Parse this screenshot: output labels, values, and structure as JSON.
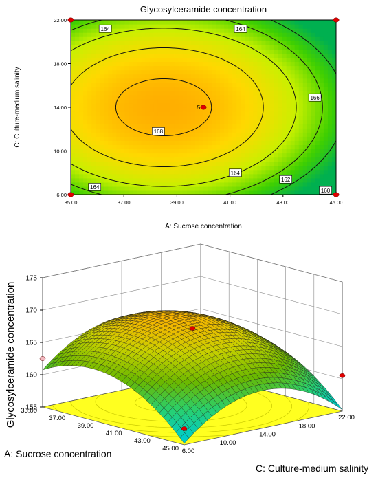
{
  "chart_data": [
    {
      "type": "contour",
      "title": "Glycosylceramide concentration",
      "xlabel": "A: Sucrose concentration",
      "ylabel": "C: Culture-medium salinity",
      "xlim": [
        35,
        45
      ],
      "ylim": [
        6,
        22
      ],
      "x_ticks": [
        "35.00",
        "37.00",
        "39.00",
        "41.00",
        "43.00",
        "45.00"
      ],
      "y_ticks": [
        "6.00",
        "10.00",
        "14.00",
        "18.00",
        "22.00"
      ],
      "contour_levels": [
        160,
        162,
        164,
        166,
        168
      ],
      "contour_labels": [
        {
          "text": "164",
          "x": 36.3,
          "y": 21.2
        },
        {
          "text": "164",
          "x": 41.4,
          "y": 21.2
        },
        {
          "text": "166",
          "x": 44.2,
          "y": 14.9
        },
        {
          "text": "168",
          "x": 38.3,
          "y": 11.8
        },
        {
          "text": "164",
          "x": 35.9,
          "y": 6.7
        },
        {
          "text": "164",
          "x": 41.2,
          "y": 8.0
        },
        {
          "text": "162",
          "x": 43.1,
          "y": 7.4
        },
        {
          "text": "160",
          "x": 44.6,
          "y": 6.4
        }
      ],
      "design_points": [
        {
          "x": 35,
          "y": 22,
          "label": ""
        },
        {
          "x": 45,
          "y": 22,
          "label": ""
        },
        {
          "x": 35,
          "y": 6,
          "label": ""
        },
        {
          "x": 45,
          "y": 6,
          "label": ""
        },
        {
          "x": 40,
          "y": 14,
          "label": "5"
        }
      ],
      "colormap": [
        "#00b050",
        "#40d000",
        "#c8f000",
        "#ffd800",
        "#ff9a00"
      ],
      "grid": false
    },
    {
      "type": "surface3d",
      "zlabel": "Glycosylceramide concentration",
      "xlabel": "A: Sucrose concentration",
      "ylabel": "C: Culture-medium salinity",
      "xlim": [
        35,
        45
      ],
      "ylim": [
        6,
        22
      ],
      "zlim": [
        155,
        175
      ],
      "x_ticks": [
        "35.00",
        "37.00",
        "39.00",
        "41.00",
        "43.00",
        "45.00"
      ],
      "y_ticks": [
        "6.00",
        "10.00",
        "14.00",
        "18.00",
        "22.00"
      ],
      "z_ticks": [
        "155",
        "160",
        "165",
        "170",
        "175"
      ],
      "design_points": [
        {
          "x": 35,
          "y": 6,
          "z": 162.5
        },
        {
          "x": 40,
          "y": 14,
          "z": 167.5
        },
        {
          "x": 45,
          "y": 22,
          "z": 160.5
        },
        {
          "x": 45,
          "y": 6,
          "z": 157.5
        }
      ],
      "surface_colors": [
        "#00ccc8",
        "#28d070",
        "#6ab800",
        "#c8d000",
        "#ffb000"
      ],
      "floor_color": "#ffff20",
      "grid": true
    }
  ]
}
